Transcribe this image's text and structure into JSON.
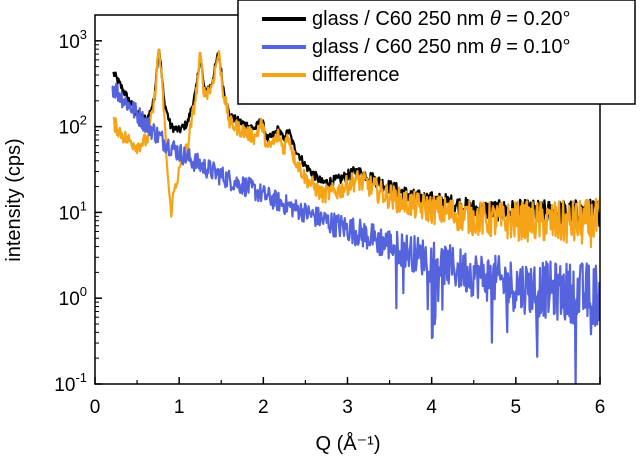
{
  "chart_data": {
    "type": "line",
    "xlabel": "Q (Å⁻¹)",
    "ylabel": "intensity (cps)",
    "y_scale": "log",
    "xlim": [
      0,
      6
    ],
    "ylim": [
      0.1,
      2000
    ],
    "x_ticks": [
      "0",
      "1",
      "2",
      "3",
      "4",
      "5",
      "6"
    ],
    "y_ticks": [
      {
        "base": "10",
        "exp": "3"
      },
      {
        "base": "10",
        "exp": "2"
      },
      {
        "base": "10",
        "exp": "1"
      },
      {
        "base": "10",
        "exp": "0"
      },
      {
        "base": "10",
        "exp": "-1"
      }
    ],
    "legend_position": "top-right",
    "series": [
      {
        "name": "glass / C60 250 nm θ = 0.20°",
        "legend_prefix": "glass / C60 250 nm ",
        "legend_theta": "θ",
        "legend_suffix": " = 0.20°",
        "color": "#000000",
        "noise": 0.05,
        "points": [
          [
            0.22,
            420
          ],
          [
            0.35,
            250
          ],
          [
            0.5,
            140
          ],
          [
            0.62,
            120
          ],
          [
            0.7,
            200
          ],
          [
            0.76,
            900
          ],
          [
            0.82,
            200
          ],
          [
            0.9,
            100
          ],
          [
            1.0,
            90
          ],
          [
            1.1,
            110
          ],
          [
            1.2,
            260
          ],
          [
            1.25,
            700
          ],
          [
            1.3,
            260
          ],
          [
            1.38,
            300
          ],
          [
            1.47,
            750
          ],
          [
            1.52,
            300
          ],
          [
            1.6,
            130
          ],
          [
            1.75,
            110
          ],
          [
            1.9,
            95
          ],
          [
            1.98,
            120
          ],
          [
            2.05,
            70
          ],
          [
            2.12,
            80
          ],
          [
            2.18,
            95
          ],
          [
            2.24,
            70
          ],
          [
            2.3,
            90
          ],
          [
            2.36,
            60
          ],
          [
            2.5,
            35
          ],
          [
            2.7,
            22
          ],
          [
            2.9,
            24
          ],
          [
            3.1,
            30
          ],
          [
            3.2,
            28
          ],
          [
            3.4,
            22
          ],
          [
            3.6,
            18
          ],
          [
            3.8,
            15
          ],
          [
            4.0,
            14
          ],
          [
            4.2,
            13
          ],
          [
            4.5,
            11
          ],
          [
            4.8,
            10.5
          ],
          [
            5.0,
            10.5
          ],
          [
            5.5,
            10
          ],
          [
            6.0,
            10
          ]
        ]
      },
      {
        "name": "glass / C60 250 nm θ = 0.10°",
        "legend_prefix": "glass / C60 250 nm ",
        "legend_theta": "θ",
        "legend_suffix": " = 0.10°",
        "color": "#5563dd",
        "noise": 0.12,
        "points": [
          [
            0.2,
            300
          ],
          [
            0.4,
            180
          ],
          [
            0.6,
            110
          ],
          [
            0.8,
            70
          ],
          [
            1.0,
            50
          ],
          [
            1.2,
            38
          ],
          [
            1.4,
            30
          ],
          [
            1.6,
            24
          ],
          [
            1.8,
            20
          ],
          [
            2.0,
            16
          ],
          [
            2.2,
            13
          ],
          [
            2.5,
            10
          ],
          [
            2.8,
            7.5
          ],
          [
            3.0,
            6.5
          ],
          [
            3.2,
            5.5
          ],
          [
            3.5,
            4.2
          ],
          [
            3.8,
            3.3
          ],
          [
            4.0,
            2.8
          ],
          [
            4.3,
            2.2
          ],
          [
            4.6,
            1.8
          ],
          [
            5.0,
            1.4
          ],
          [
            5.5,
            1.2
          ],
          [
            6.0,
            1.1
          ]
        ]
      },
      {
        "name": "difference",
        "legend_prefix": "difference",
        "legend_theta": "",
        "legend_suffix": "",
        "color": "#f5a418",
        "noise": 0.09,
        "points": [
          [
            0.22,
            110
          ],
          [
            0.35,
            75
          ],
          [
            0.5,
            60
          ],
          [
            0.62,
            70
          ],
          [
            0.7,
            180
          ],
          [
            0.76,
            880
          ],
          [
            0.82,
            150
          ],
          [
            0.86,
            30
          ],
          [
            0.9,
            10
          ],
          [
            0.95,
            20
          ],
          [
            1.0,
            30
          ],
          [
            1.1,
            60
          ],
          [
            1.2,
            230
          ],
          [
            1.25,
            680
          ],
          [
            1.3,
            240
          ],
          [
            1.38,
            280
          ],
          [
            1.47,
            730
          ],
          [
            1.52,
            270
          ],
          [
            1.6,
            110
          ],
          [
            1.75,
            90
          ],
          [
            1.9,
            75
          ],
          [
            1.98,
            110
          ],
          [
            2.05,
            55
          ],
          [
            2.12,
            65
          ],
          [
            2.18,
            80
          ],
          [
            2.24,
            55
          ],
          [
            2.3,
            80
          ],
          [
            2.36,
            45
          ],
          [
            2.5,
            25
          ],
          [
            2.7,
            16
          ],
          [
            2.9,
            18
          ],
          [
            3.1,
            24
          ],
          [
            3.2,
            22
          ],
          [
            3.4,
            17
          ],
          [
            3.6,
            14
          ],
          [
            3.8,
            12
          ],
          [
            4.0,
            11
          ],
          [
            4.2,
            10
          ],
          [
            4.5,
            8.5
          ],
          [
            4.8,
            8
          ],
          [
            5.0,
            8
          ],
          [
            5.5,
            7.5
          ],
          [
            6.0,
            7.5
          ]
        ]
      }
    ]
  }
}
